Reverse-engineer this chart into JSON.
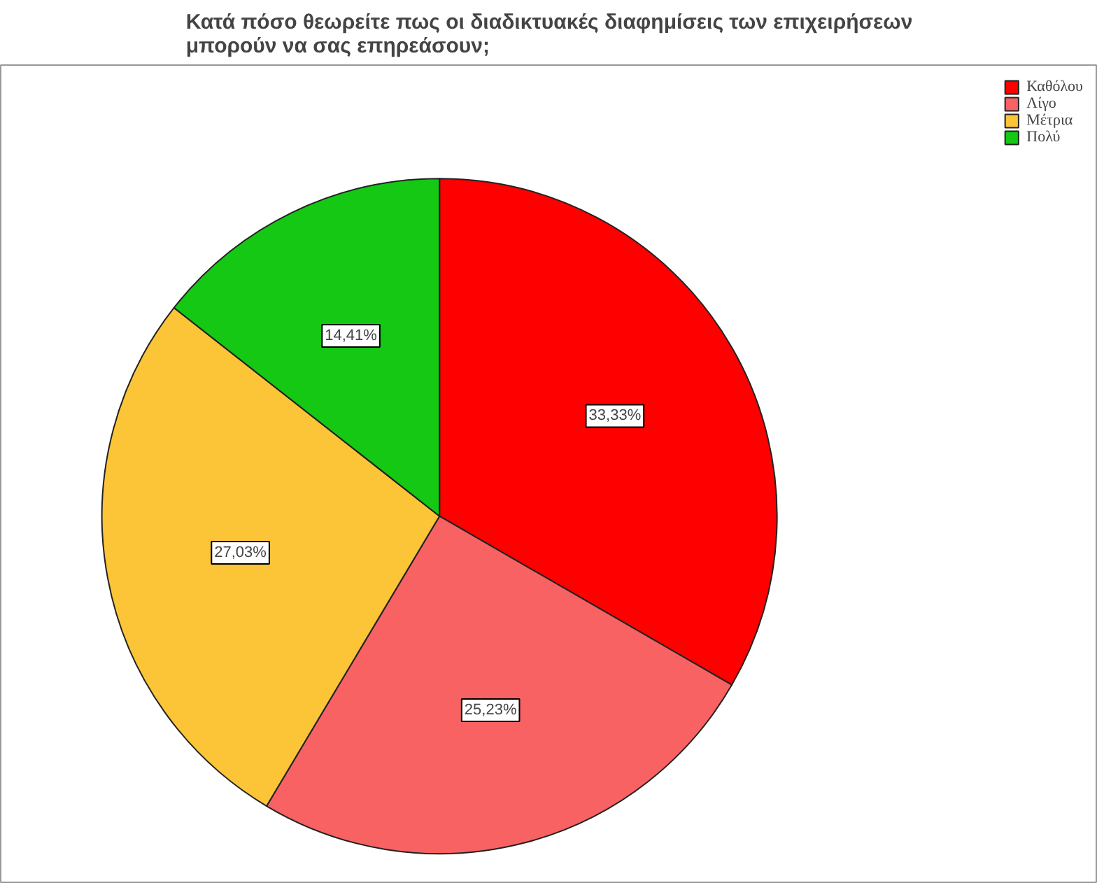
{
  "chart_data": {
    "type": "pie",
    "title": "Κατά πόσο θεωρείτε πως οι διαδικτυακές διαφημίσεις των επιχειρήσεων\nμπορούν να σας επηρεάσουν;",
    "categories": [
      "Καθόλου",
      "Λίγο",
      "Μέτρια",
      "Πολύ"
    ],
    "values": [
      33.33,
      25.23,
      27.03,
      14.41
    ],
    "colors": [
      "#ff0000",
      "#f86262",
      "#fcc437",
      "#14c814"
    ],
    "value_labels": [
      "33,33%",
      "25,23%",
      "27,03%",
      "14,41%"
    ],
    "legend": "top right"
  }
}
